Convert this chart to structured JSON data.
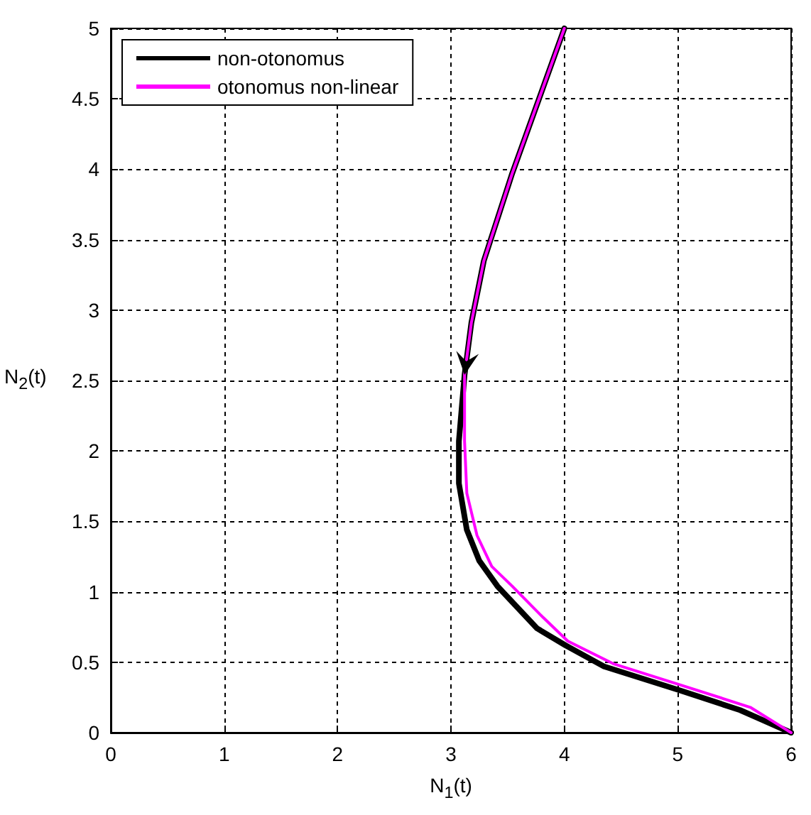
{
  "chart_data": {
    "type": "line",
    "xlabel": "N$_{1}$(t)",
    "ylabel": "N$_{2}$(t)",
    "xlim": [
      0,
      6
    ],
    "xticks": [
      0,
      1,
      2,
      3,
      4,
      5,
      6
    ],
    "ylim": [
      0,
      5
    ],
    "yticks": [
      0,
      0.5,
      1,
      1.5,
      2,
      2.5,
      3,
      3.5,
      4,
      4.5,
      5
    ],
    "grid": true,
    "legend": "top left",
    "marker": "none",
    "line_style": "solid",
    "series": [
      {
        "name": "non-otonomus",
        "color": "#000000",
        "x": [
          4,
          3.54,
          3.29,
          3.18,
          3.12,
          3.07,
          3.07,
          3.14,
          3.25,
          3.41,
          3.76,
          4.01,
          4.35,
          5.02,
          5.55,
          6
        ],
        "values": [
          5,
          3.97,
          3.35,
          2.91,
          2.54,
          2.07,
          1.77,
          1.44,
          1.22,
          1.04,
          0.74,
          0.62,
          0.47,
          0.3,
          0.16,
          0
        ]
      },
      {
        "name": "otonomus non-linear",
        "color": "#ff00ff",
        "x": [
          4,
          3.54,
          3.29,
          3.18,
          3.12,
          3.12,
          3.14,
          3.23,
          3.36,
          3.54,
          3.81,
          4.03,
          4.43,
          5.02,
          5.64,
          6
        ],
        "values": [
          5,
          3.97,
          3.35,
          2.91,
          2.54,
          2.07,
          1.7,
          1.4,
          1.18,
          1.04,
          0.82,
          0.65,
          0.49,
          0.34,
          0.18,
          0
        ]
      }
    ]
  }
}
